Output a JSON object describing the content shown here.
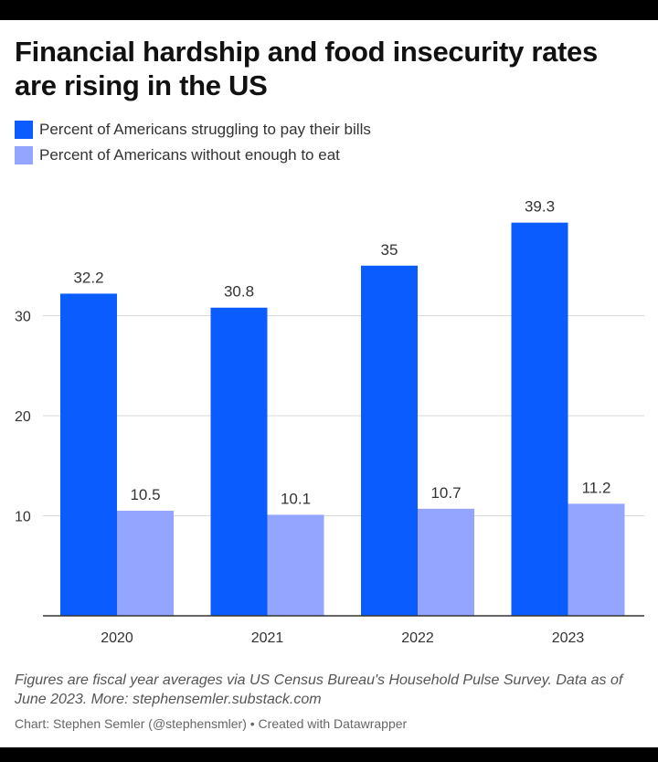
{
  "title": "Financial hardship and food insecurity rates are rising in the US",
  "note": "Figures are fiscal year averages via US Census Bureau's Household Pulse Survey. Data as of June 2023. More: stephensemler.substack.com",
  "credit": "Chart: Stephen Semler (@stephensmler) • Created with Datawrapper",
  "colors": {
    "bills": "#0a5cff",
    "eat": "#94a5ff",
    "grid": "#d9d9d9",
    "axis": "#333333"
  },
  "chart_data": {
    "type": "bar",
    "categories": [
      "2020",
      "2021",
      "2022",
      "2023"
    ],
    "series": [
      {
        "name": "Percent of Americans struggling to pay their bills",
        "values": [
          32.2,
          30.8,
          35,
          39.3
        ]
      },
      {
        "name": "Percent of Americans without enough to eat",
        "values": [
          10.5,
          10.1,
          10.7,
          11.2
        ]
      }
    ],
    "yticks": [
      10,
      20,
      30
    ],
    "ylim": [
      0,
      40
    ],
    "grid": true,
    "legend": "top-left"
  }
}
